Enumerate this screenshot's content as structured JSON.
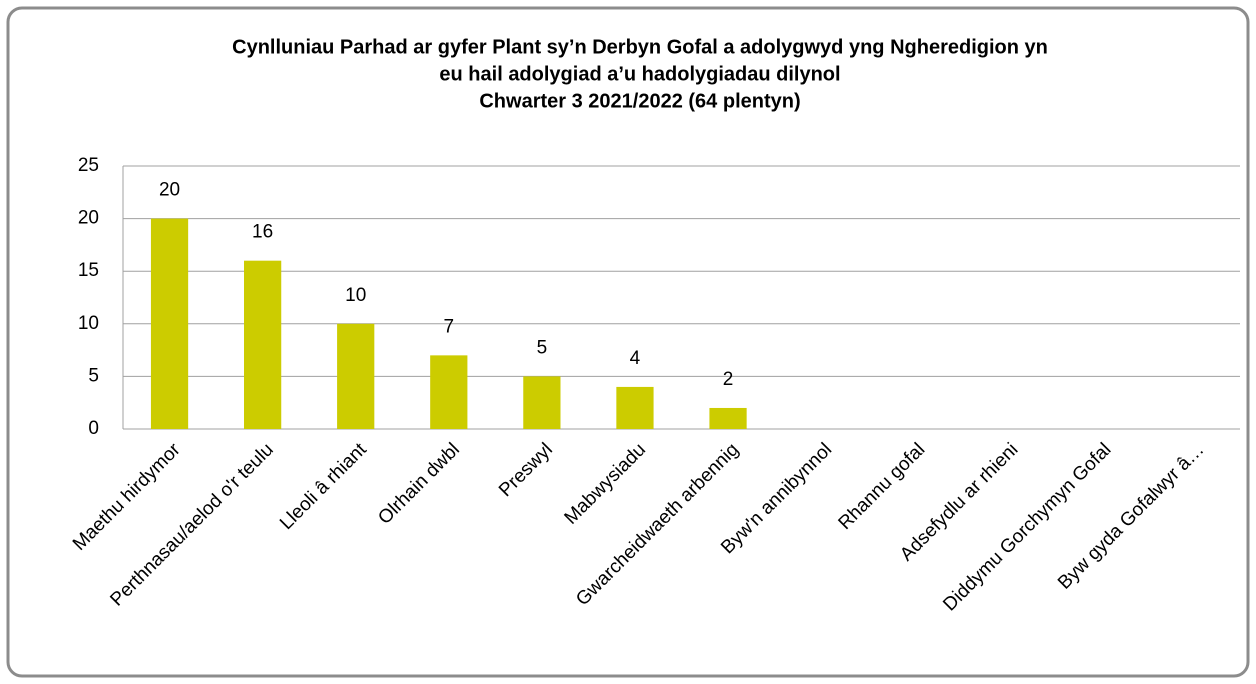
{
  "chart_data": {
    "type": "bar",
    "title": [
      "Cynlluniau Parhad ar gyfer Plant sy’n Derbyn Gofal a adolygwyd yng Ngheredigion yn",
      "eu hail adolygiad a’u hadolygiadau dilynol",
      "Chwarter 3   2021/2022 (64 plentyn)"
    ],
    "categories": [
      "Maethu hirdymor",
      "Perthnasau/aelod o'r teulu",
      "Lleoli â rhiant",
      "Olrhain dwbl",
      "Preswyl",
      "Mabwysiadu",
      "Gwarcheidwaeth arbennig",
      "Byw'n annibynnol",
      "Rhannu gofal",
      "Adsefydlu ar rhieni",
      "Diddymu Gorchymyn Gofal",
      "Byw gyda Gofalwyr â…"
    ],
    "values": [
      20,
      16,
      10,
      7,
      5,
      4,
      2,
      0,
      0,
      0,
      0,
      0
    ],
    "color": "#cccc00",
    "ylim": [
      0,
      25
    ],
    "yticks": [
      0,
      5,
      10,
      15,
      20,
      25
    ],
    "grid": true
  }
}
